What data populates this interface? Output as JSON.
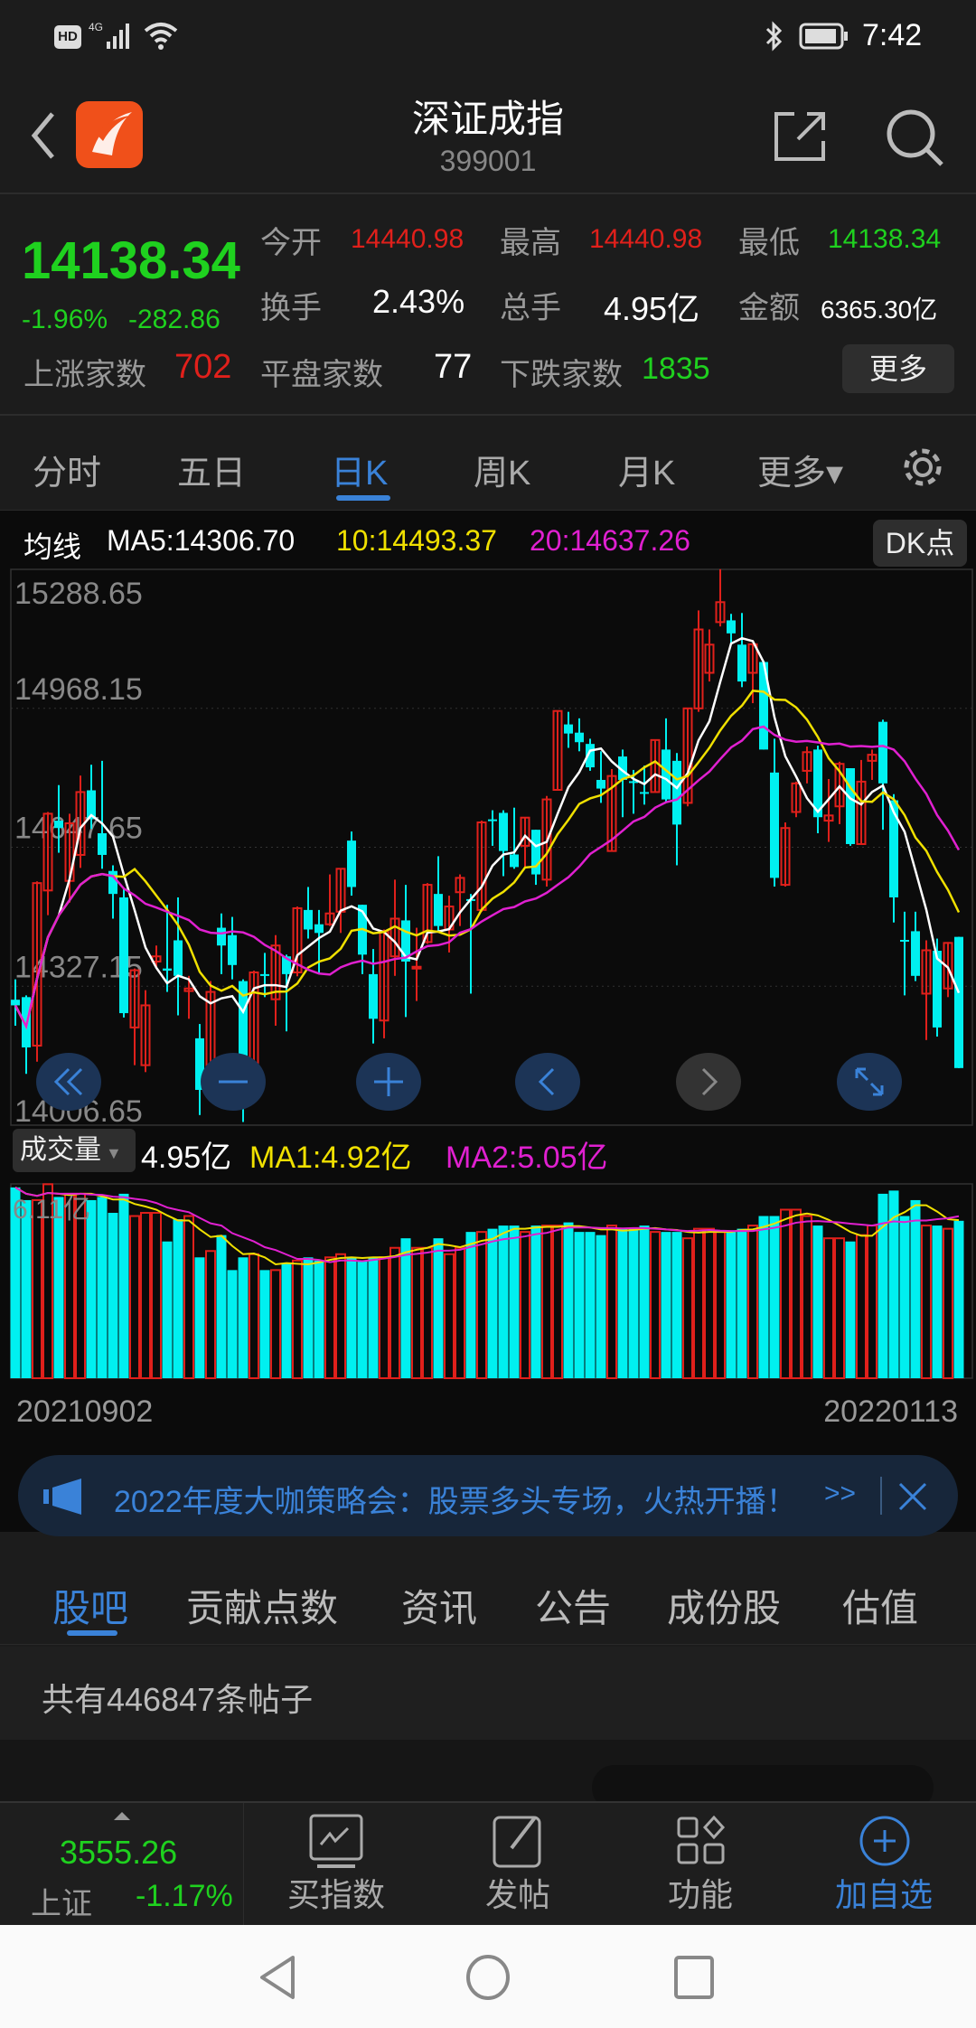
{
  "status_bar": {
    "left_icons": [
      "hd-icon",
      "4g-signal-icon",
      "wifi-icon"
    ],
    "time": "7:42",
    "right_icons": [
      "bluetooth-icon",
      "battery-icon"
    ]
  },
  "header": {
    "title": "深证成指",
    "code": "399001"
  },
  "quote": {
    "price": "14138.34",
    "change_pct": "-1.96%",
    "change": "-282.86",
    "open_label": "今开",
    "open": "14440.98",
    "high_label": "最高",
    "high": "14440.98",
    "low_label": "最低",
    "low": "14138.34",
    "turnover_label": "换手",
    "turnover": "2.43%",
    "volume_label": "总手",
    "volume": "4.95亿",
    "amount_label": "金额",
    "amount": "6365.30亿",
    "up_label": "上涨家数",
    "up": "702",
    "flat_label": "平盘家数",
    "flat": "77",
    "down_label": "下跌家数",
    "down": "1835",
    "more": "更多"
  },
  "tabs": [
    {
      "label": "分时"
    },
    {
      "label": "五日"
    },
    {
      "label": "日K",
      "active": true
    },
    {
      "label": "周K"
    },
    {
      "label": "月K"
    },
    {
      "label": "更多▾"
    }
  ],
  "ma_legend": {
    "label": "均线",
    "ma5": "MA5:14306.70",
    "ma10": "10:14493.37",
    "ma20": "20:14637.26",
    "dk_button": "DK点"
  },
  "colors": {
    "up": "#e0201b",
    "down": "#00f0f0",
    "ma5": "#ffffff",
    "ma10": "#f0e000",
    "ma20": "#e020d0",
    "accent": "#3a82d8",
    "green": "#1fd11f"
  },
  "chart_data": {
    "type": "candlestick",
    "y_ticks": [
      "15288.65",
      "14968.15",
      "14647.65",
      "14327.15",
      "14006.65"
    ],
    "ylim": [
      14006.65,
      15288.65
    ],
    "x_start": "20210902",
    "x_end": "20220113",
    "ohlc": [
      [
        14296,
        14343,
        14236,
        14283
      ],
      [
        14302,
        14306,
        14125,
        14186
      ],
      [
        14190,
        14569,
        14153,
        14565
      ],
      [
        14548,
        14729,
        14491,
        14725
      ],
      [
        14709,
        14791,
        14635,
        14692
      ],
      [
        14570,
        14725,
        14520,
        14703
      ],
      [
        14630,
        14813,
        14600,
        14775
      ],
      [
        14779,
        14838,
        14690,
        14713
      ],
      [
        14680,
        14847,
        14598,
        14630
      ],
      [
        14593,
        14606,
        14483,
        14540
      ],
      [
        14532,
        14553,
        14255,
        14265
      ],
      [
        14232,
        14368,
        14145,
        14364
      ],
      [
        14145,
        14318,
        14129,
        14283
      ],
      [
        14384,
        14421,
        14370,
        14396
      ],
      [
        14368,
        14515,
        14314,
        14363
      ],
      [
        14433,
        14532,
        14260,
        14351
      ],
      [
        14316,
        14351,
        14252,
        14322
      ],
      [
        14207,
        14240,
        14030,
        14088
      ],
      [
        14133,
        14339,
        14125,
        14314
      ],
      [
        14462,
        14495,
        14355,
        14421
      ],
      [
        14445,
        14487,
        14343,
        14376
      ],
      [
        14339,
        14343,
        14014,
        14141
      ],
      [
        14145,
        14363,
        14121,
        14359
      ],
      [
        14355,
        14404,
        14302,
        14351
      ],
      [
        14297,
        14445,
        14236,
        14421
      ],
      [
        14396,
        14400,
        14223,
        14355
      ],
      [
        14359,
        14511,
        14350,
        14507
      ],
      [
        14503,
        14556,
        14437,
        14458
      ],
      [
        14470,
        14503,
        14355,
        14450
      ],
      [
        14470,
        14585,
        14466,
        14495
      ],
      [
        14499,
        14598,
        14450,
        14598
      ],
      [
        14663,
        14684,
        14536,
        14556
      ],
      [
        14515,
        14515,
        14355,
        14400
      ],
      [
        14355,
        14413,
        14195,
        14252
      ],
      [
        14248,
        14458,
        14207,
        14454
      ],
      [
        14396,
        14573,
        14351,
        14483
      ],
      [
        14479,
        14561,
        14256,
        14384
      ],
      [
        14368,
        14462,
        14293,
        14372
      ],
      [
        14429,
        14565,
        14425,
        14561
      ],
      [
        14540,
        14627,
        14454,
        14466
      ],
      [
        14458,
        14536,
        14405,
        14511
      ],
      [
        14544,
        14585,
        14466,
        14577
      ],
      [
        14528,
        14540,
        14310,
        14524
      ],
      [
        14503,
        14709,
        14499,
        14705
      ],
      [
        14712,
        14733,
        14651,
        14709
      ],
      [
        14727,
        14733,
        14581,
        14639
      ],
      [
        14631,
        14739,
        14598,
        14602
      ],
      [
        14651,
        14717,
        14602,
        14716
      ],
      [
        14688,
        14688,
        14561,
        14585
      ],
      [
        14573,
        14766,
        14557,
        14758
      ],
      [
        14780,
        14962,
        14780,
        14962
      ],
      [
        14931,
        14960,
        14877,
        14910
      ],
      [
        14912,
        14945,
        14869,
        14890
      ],
      [
        14886,
        14898,
        14824,
        14832
      ],
      [
        14803,
        14869,
        14750,
        14783
      ],
      [
        14639,
        14828,
        14639,
        14812
      ],
      [
        14857,
        14873,
        14717,
        14803
      ],
      [
        14800,
        14826,
        14725,
        14797
      ],
      [
        14775,
        14836,
        14746,
        14772
      ],
      [
        14775,
        14895,
        14775,
        14895
      ],
      [
        14873,
        14945,
        14750,
        14758
      ],
      [
        14847,
        14865,
        14606,
        14700
      ],
      [
        14750,
        14968,
        14742,
        14968
      ],
      [
        14968,
        15194,
        14960,
        15150
      ],
      [
        15050,
        15150,
        15030,
        15115
      ],
      [
        15167,
        15289,
        15157,
        15213
      ],
      [
        15171,
        15186,
        15116,
        15141
      ],
      [
        15115,
        15188,
        15017,
        15030
      ],
      [
        15050,
        15116,
        14980,
        15116
      ],
      [
        15075,
        15077,
        14873,
        14873
      ],
      [
        14820,
        14898,
        14557,
        14577
      ],
      [
        14561,
        14705,
        14557,
        14692
      ],
      [
        14729,
        14799,
        14717,
        14795
      ],
      [
        14824,
        14880,
        14795,
        14867
      ],
      [
        14873,
        14882,
        14680,
        14717
      ],
      [
        14709,
        14805,
        14660,
        14721
      ],
      [
        14742,
        14845,
        14701,
        14840
      ],
      [
        14830,
        14830,
        14651,
        14655
      ],
      [
        14655,
        14849,
        14655,
        14799
      ],
      [
        14847,
        14873,
        14803,
        14861
      ],
      [
        14937,
        14942,
        14688,
        14795
      ],
      [
        14756,
        14770,
        14474,
        14532
      ],
      [
        14434,
        14499,
        14306,
        14430
      ],
      [
        14454,
        14499,
        14339,
        14351
      ],
      [
        14310,
        14433,
        14203,
        14410
      ],
      [
        14409,
        14437,
        14211,
        14232
      ],
      [
        14322,
        14429,
        14302,
        14427
      ],
      [
        14440.98,
        14440.98,
        14138.34,
        14138.34
      ]
    ],
    "ma_series": [
      {
        "name": "MA5",
        "period": 5
      },
      {
        "name": "10",
        "period": 10
      },
      {
        "name": "20",
        "period": 20
      }
    ],
    "volume": {
      "label": "成交量",
      "current": "4.95亿",
      "ma1": "MA1:4.92亿",
      "ma2": "MA2:5.05亿",
      "max_tick": "6.11亿",
      "ylim": [
        0,
        6.11
      ],
      "values": [
        6.0,
        5.6,
        5.6,
        6.1,
        5.7,
        5.8,
        5.8,
        5.6,
        5.7,
        5.2,
        5.8,
        5.1,
        5.2,
        5.2,
        4.3,
        5.0,
        5.1,
        3.8,
        4.0,
        4.5,
        3.4,
        3.8,
        3.9,
        3.4,
        3.4,
        3.6,
        3.7,
        3.8,
        3.7,
        3.8,
        3.9,
        3.8,
        3.7,
        3.8,
        3.8,
        4.1,
        4.4,
        4.1,
        4.1,
        4.4,
        3.9,
        4.1,
        4.6,
        4.6,
        4.7,
        4.8,
        4.8,
        4.6,
        4.8,
        4.8,
        4.8,
        4.9,
        4.6,
        4.6,
        4.5,
        4.8,
        4.7,
        4.7,
        4.8,
        4.6,
        4.6,
        4.6,
        4.4,
        4.7,
        4.7,
        4.6,
        4.6,
        4.7,
        4.8,
        5.1,
        5.1,
        5.3,
        5.3,
        5.1,
        4.8,
        4.4,
        4.4,
        4.3,
        4.5,
        4.8,
        5.8,
        5.9,
        5.1,
        5.6,
        4.8,
        4.8,
        4.7,
        4.95
      ]
    }
  },
  "chart_controls": [
    "rewind-icon",
    "zoom-out-icon",
    "zoom-in-icon",
    "prev-icon",
    "next-icon",
    "fullscreen-icon"
  ],
  "banner": {
    "text": "2022年度大咖策略会：股票多头专场，火热开播！",
    "more": ">>"
  },
  "subtabs": [
    {
      "label": "股吧",
      "active": true
    },
    {
      "label": "贡献点数"
    },
    {
      "label": "资讯"
    },
    {
      "label": "公告"
    },
    {
      "label": "成份股"
    },
    {
      "label": "估值"
    }
  ],
  "posts": {
    "count_text": "共有446847条帖子"
  },
  "bottom_bar": {
    "index_value": "3555.26",
    "index_name": "上证",
    "index_change": "-1.17%",
    "items": [
      {
        "label": "买指数"
      },
      {
        "label": "发帖"
      },
      {
        "label": "功能"
      },
      {
        "label": "加自选"
      }
    ]
  }
}
